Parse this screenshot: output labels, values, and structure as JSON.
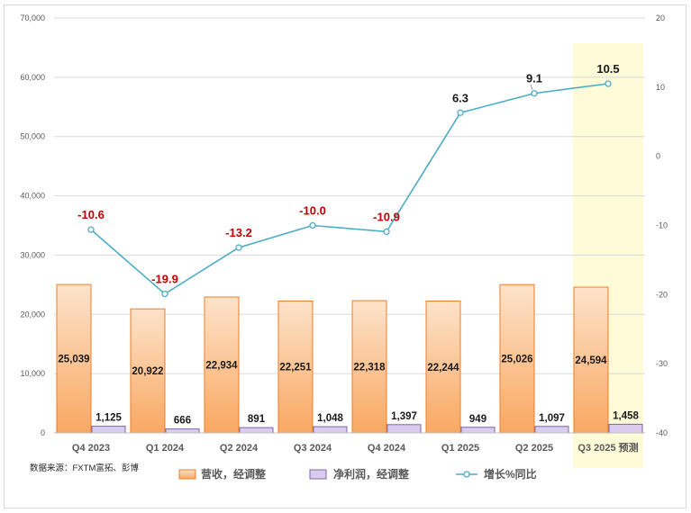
{
  "chart_data": {
    "type": "bar",
    "categories": [
      "Q4 2023",
      "Q1 2024",
      "Q2 2024",
      "Q3 2024",
      "Q4 2024",
      "Q1 2025",
      "Q2 2025",
      "Q3 2025 预测"
    ],
    "series": [
      {
        "name": "营收，经调整",
        "kind": "bar",
        "axis": "left",
        "values": [
          25039,
          20922,
          22934,
          22251,
          22318,
          22244,
          25026,
          24594
        ],
        "labels": [
          "25,039",
          "20,922",
          "22,934",
          "22,251",
          "22,318",
          "22,244",
          "25,026",
          "24,594"
        ]
      },
      {
        "name": "净利润，经调整",
        "kind": "bar",
        "axis": "left",
        "values": [
          1125,
          666,
          891,
          1048,
          1397,
          949,
          1097,
          1458
        ],
        "labels": [
          "1,125",
          "666",
          "891",
          "1,048",
          "1,397",
          "949",
          "1,097",
          "1,458"
        ]
      },
      {
        "name": "增长%同比",
        "kind": "line",
        "axis": "right",
        "values": [
          -10.6,
          -19.9,
          -13.2,
          -10.0,
          -10.9,
          6.3,
          9.1,
          10.5
        ],
        "labels": [
          "-10.6",
          "-19.9",
          "-13.2",
          "-10.0",
          "-10.9",
          "6.3",
          "9.1",
          "10.5"
        ]
      }
    ],
    "y_left": {
      "range": [
        0,
        70000
      ],
      "ticks": [
        "0",
        "10,000",
        "20,000",
        "30,000",
        "40,000",
        "50,000",
        "60,000",
        "70,000"
      ]
    },
    "y_right": {
      "range": [
        -40,
        20
      ],
      "ticks": [
        "-40",
        "-30",
        "-20",
        "-10",
        "0",
        "10",
        "20"
      ]
    },
    "highlight_category": "Q3 2025 预测",
    "grid": true,
    "legend_position": "bottom",
    "source_note": "数据来源：FXTM富拓、彭博",
    "colors": {
      "revenue_top": "#fde3ca",
      "revenue_bottom": "#f9a862",
      "revenue_edge": "#ee7d2b",
      "profit_fill": "#d9ccee",
      "profit_edge": "#7f64a8",
      "line": "#4bacc6",
      "negative_label": "#c00000",
      "positive_label": "#1a1a1a",
      "highlight_band": "#fefbd8",
      "grid": "#d9d9d9"
    }
  }
}
